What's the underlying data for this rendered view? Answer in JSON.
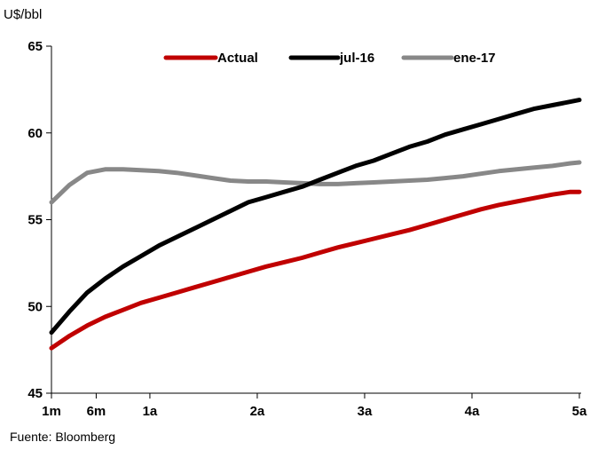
{
  "source": "Fuente: Bloomberg",
  "chart_data": {
    "type": "line",
    "title": "",
    "xlabel": "",
    "ylabel": "U$/bbl",
    "ylim": [
      45,
      65
    ],
    "yticks": [
      45,
      50,
      55,
      60,
      65
    ],
    "xlim": [
      1,
      60
    ],
    "xticks": [
      {
        "value": 1,
        "label": "1m"
      },
      {
        "value": 6,
        "label": "6m"
      },
      {
        "value": 12,
        "label": "1a"
      },
      {
        "value": 24,
        "label": "2a"
      },
      {
        "value": 36,
        "label": "3a"
      },
      {
        "value": 48,
        "label": "4a"
      },
      {
        "value": 60,
        "label": "5a"
      }
    ],
    "grid": false,
    "legend_position": "top",
    "x": [
      1,
      3,
      5,
      7,
      9,
      11,
      13,
      15,
      17,
      19,
      21,
      23,
      25,
      27,
      29,
      31,
      33,
      35,
      37,
      39,
      41,
      43,
      45,
      47,
      49,
      51,
      53,
      55,
      57,
      59,
      60
    ],
    "series": [
      {
        "name": "Actual",
        "color": "#c00000",
        "values": [
          47.6,
          48.3,
          48.9,
          49.4,
          49.8,
          50.2,
          50.5,
          50.8,
          51.1,
          51.4,
          51.7,
          52.0,
          52.3,
          52.55,
          52.8,
          53.1,
          53.4,
          53.65,
          53.9,
          54.15,
          54.4,
          54.7,
          55.0,
          55.3,
          55.6,
          55.85,
          56.05,
          56.25,
          56.45,
          56.6,
          56.6
        ]
      },
      {
        "name": "jul-16",
        "color": "#000000",
        "values": [
          48.5,
          49.7,
          50.8,
          51.6,
          52.3,
          52.9,
          53.5,
          54.0,
          54.5,
          55.0,
          55.5,
          56.0,
          56.3,
          56.6,
          56.9,
          57.3,
          57.7,
          58.1,
          58.4,
          58.8,
          59.2,
          59.5,
          59.9,
          60.2,
          60.5,
          60.8,
          61.1,
          61.4,
          61.6,
          61.8,
          61.9
        ]
      },
      {
        "name": "ene-17",
        "color": "#888888",
        "values": [
          56.0,
          57.0,
          57.7,
          57.9,
          57.9,
          57.85,
          57.8,
          57.7,
          57.55,
          57.4,
          57.25,
          57.2,
          57.2,
          57.15,
          57.1,
          57.05,
          57.05,
          57.1,
          57.15,
          57.2,
          57.25,
          57.3,
          57.4,
          57.5,
          57.65,
          57.8,
          57.9,
          58.0,
          58.1,
          58.25,
          58.3
        ]
      }
    ]
  }
}
